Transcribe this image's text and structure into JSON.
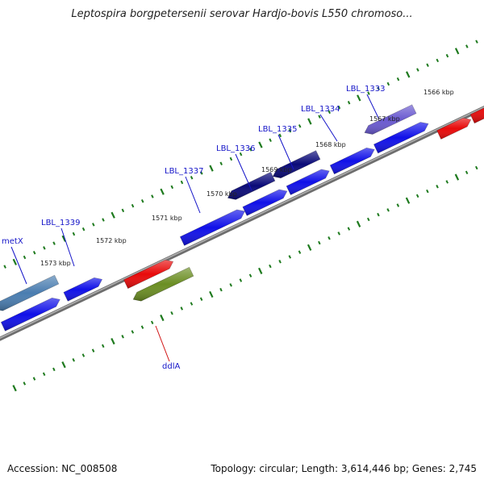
{
  "title": "Leptospira borgpetersenii serovar Hardjo-bovis L550 chromoso...",
  "footer": {
    "accession": "Accession: NC_008508",
    "topology": "Topology: circular; Length: 3,614,446 bp; Genes: 2,745"
  },
  "colors": {
    "backbone": "#8a8a8a",
    "tick": "#1e7a1e",
    "label_link_blue": "#1414c8",
    "label_link_red": "#d01010",
    "cds_blue": "#1010e8",
    "cds_navy": "#0a0a78",
    "cds_purple": "#6a5ad0",
    "cds_steel": "#4a7db0",
    "cds_red": "#e80a0a",
    "cds_olive": "#6b8e23",
    "cds_gray": "#6a6a6a"
  },
  "kbp_labels": [
    "1566 kbp",
    "1567 kbp",
    "1568 kbp",
    "1569 kbp",
    "1570 kbp",
    "1571 kbp",
    "1572 kbp",
    "1573 kbp"
  ],
  "gene_labels": [
    {
      "text": "LBL_1333",
      "color": "blue"
    },
    {
      "text": "LBL_1334",
      "color": "blue"
    },
    {
      "text": "LBL_1335",
      "color": "blue"
    },
    {
      "text": "LBL_1336",
      "color": "blue"
    },
    {
      "text": "LBL_1337",
      "color": "blue"
    },
    {
      "text": "LBL_1339",
      "color": "blue"
    },
    {
      "text": "metX",
      "color": "blue"
    },
    {
      "text": "ddlA",
      "color": "red"
    }
  ]
}
